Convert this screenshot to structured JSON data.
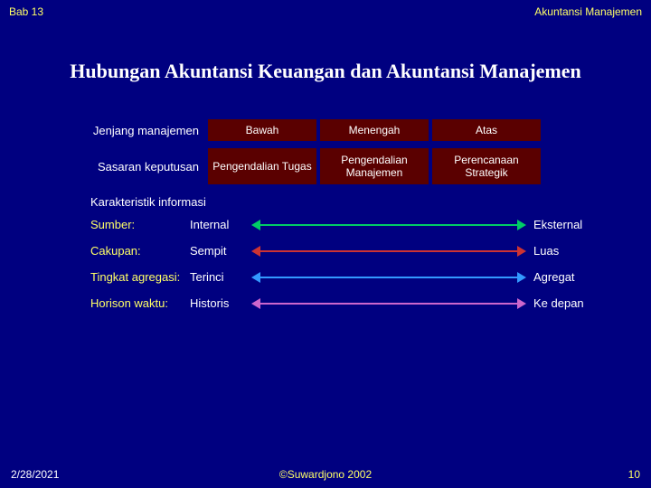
{
  "header": {
    "left": "Bab 13",
    "right": "Akuntansi Manajemen"
  },
  "title": "Hubungan Akuntansi Keuangan dan Akuntansi Manajemen",
  "table": {
    "row1_label": "Jenjang manajemen",
    "row1": [
      "Bawah",
      "Menengah",
      "Atas"
    ],
    "row2_label": "Sasaran keputusan",
    "row2": [
      "Pengendalian Tugas",
      "Pengendalian Manajemen",
      "Perencanaan Strategik"
    ]
  },
  "section_label": "Karakteristik informasi",
  "characteristics": [
    {
      "label": "Sumber:",
      "left": "Internal",
      "right": "Eksternal",
      "color": "#00cc66"
    },
    {
      "label": "Cakupan:",
      "left": "Sempit",
      "right": "Luas",
      "color": "#cc3333"
    },
    {
      "label": "Tingkat agregasi:",
      "left": "Terinci",
      "right": "Agregat",
      "color": "#3399ff"
    },
    {
      "label": "Horison waktu:",
      "left": "Historis",
      "right": "Ke depan",
      "color": "#cc66cc"
    }
  ],
  "footer": {
    "date": "2/28/2021",
    "copyright": "©Suwardjono 2002",
    "page": "10"
  },
  "colors": {
    "background": "#000080",
    "cell_bg": "#5a0000",
    "accent": "#ffff66"
  }
}
